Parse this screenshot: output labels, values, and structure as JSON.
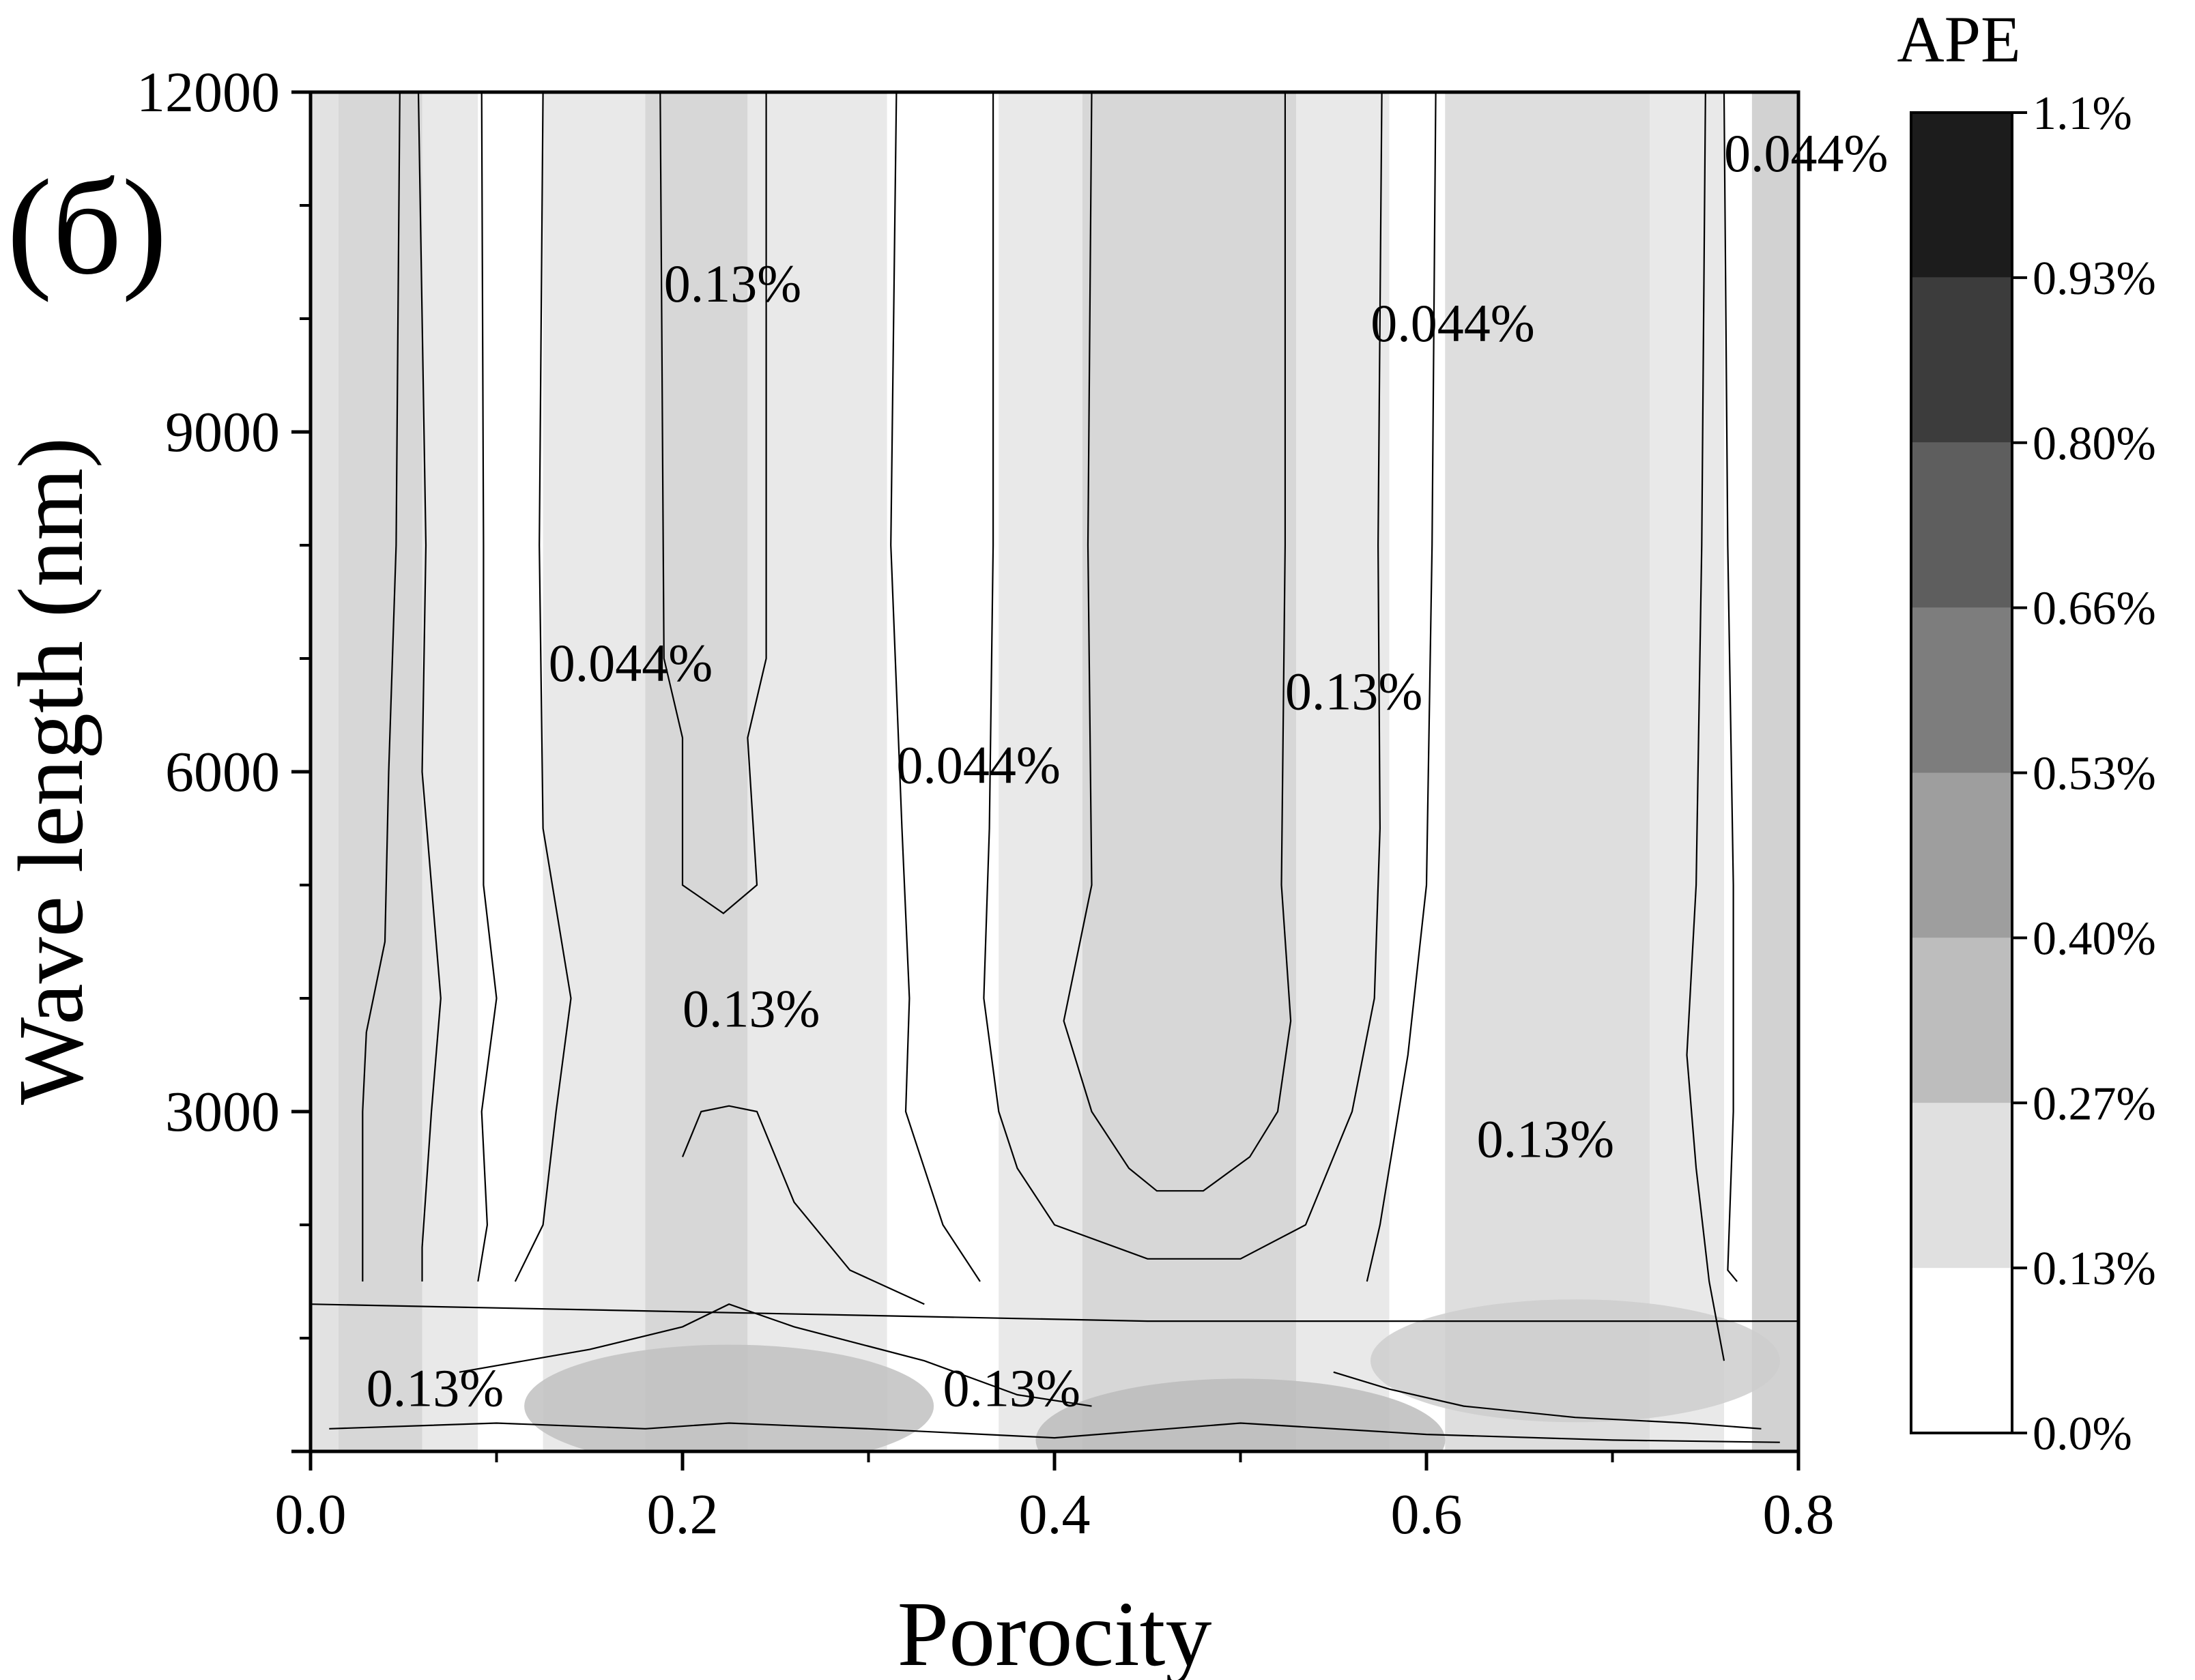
{
  "chart_data": {
    "type": "heatmap",
    "panel_label": "(б)",
    "xlabel": "Porocity",
    "ylabel": "Wave length (nm)",
    "xlim": [
      0.0,
      0.8
    ],
    "ylim": [
      0,
      12000
    ],
    "xticks": [
      "0.0",
      "0.2",
      "0.4",
      "0.6",
      "0.8"
    ],
    "yticks": [
      "3000",
      "6000",
      "9000",
      "12000"
    ],
    "colorbar": {
      "title": "APE",
      "levels": [
        0.0,
        0.13,
        0.27,
        0.4,
        0.53,
        0.66,
        0.8,
        0.93,
        1.1
      ],
      "labels": [
        "0.0%",
        "0.13%",
        "0.27%",
        "0.40%",
        "0.53%",
        "0.66%",
        "0.80%",
        "0.93%",
        "1.1%"
      ],
      "colors": [
        "#ffffff",
        "#e0e0e0",
        "#bdbdbd",
        "#9e9e9e",
        "#7d7d7d",
        "#5e5e5e",
        "#3c3c3c",
        "#1c1c1c"
      ]
    },
    "bands": [
      {
        "porosity": [
          0.0,
          0.015
        ],
        "level": 0.13
      },
      {
        "porosity": [
          0.015,
          0.06
        ],
        "level": 0.18
      },
      {
        "porosity": [
          0.06,
          0.09
        ],
        "level": 0.1
      },
      {
        "porosity": [
          0.09,
          0.125
        ],
        "level": 0.0
      },
      {
        "porosity": [
          0.125,
          0.18
        ],
        "level": 0.1
      },
      {
        "porosity": [
          0.18,
          0.235
        ],
        "level": 0.18
      },
      {
        "porosity": [
          0.235,
          0.31
        ],
        "level": 0.1
      },
      {
        "porosity": [
          0.31,
          0.37
        ],
        "level": 0.0
      },
      {
        "porosity": [
          0.37,
          0.415
        ],
        "level": 0.1
      },
      {
        "porosity": [
          0.415,
          0.53
        ],
        "level": 0.18
      },
      {
        "porosity": [
          0.53,
          0.58
        ],
        "level": 0.1
      },
      {
        "porosity": [
          0.58,
          0.61
        ],
        "level": 0.0
      },
      {
        "porosity": [
          0.61,
          0.72
        ],
        "level": 0.15
      },
      {
        "porosity": [
          0.72,
          0.76
        ],
        "level": 0.1
      },
      {
        "porosity": [
          0.76,
          0.775
        ],
        "level": 0.0
      },
      {
        "porosity": [
          0.775,
          0.8
        ],
        "level": 0.2
      }
    ],
    "blobs": [
      {
        "porosity": 0.225,
        "wavelength": 400,
        "level": 0.28
      },
      {
        "porosity": 0.68,
        "wavelength": 800,
        "level": 0.22
      },
      {
        "porosity": 0.5,
        "wavelength": 100,
        "level": 0.3
      }
    ],
    "contours": [
      {
        "level": "0.13%",
        "points": [
          [
            0.048,
            12000
          ],
          [
            0.046,
            8000
          ],
          [
            0.042,
            6000
          ],
          [
            0.04,
            4500
          ],
          [
            0.03,
            3700
          ],
          [
            0.028,
            3000
          ],
          [
            0.028,
            1500
          ]
        ]
      },
      {
        "level": "0.13%",
        "points": [
          [
            0.058,
            12000
          ],
          [
            0.062,
            8000
          ],
          [
            0.06,
            6000
          ],
          [
            0.07,
            4000
          ],
          [
            0.065,
            3000
          ],
          [
            0.06,
            1800
          ],
          [
            0.06,
            1500
          ]
        ]
      },
      {
        "level": "0.044%",
        "points": [
          [
            0.092,
            12000
          ],
          [
            0.093,
            8000
          ],
          [
            0.093,
            5000
          ],
          [
            0.1,
            4000
          ],
          [
            0.092,
            3000
          ],
          [
            0.095,
            2000
          ],
          [
            0.09,
            1500
          ]
        ]
      },
      {
        "level": "0.044%",
        "points": [
          [
            0.125,
            12000
          ],
          [
            0.123,
            8000
          ],
          [
            0.125,
            5500
          ],
          [
            0.14,
            4000
          ],
          [
            0.132,
            3000
          ],
          [
            0.125,
            2000
          ],
          [
            0.11,
            1500
          ]
        ]
      },
      {
        "level": "0.13%",
        "points": [
          [
            0.188,
            12000
          ],
          [
            0.19,
            7000
          ],
          [
            0.2,
            6300
          ],
          [
            0.2,
            5000
          ],
          [
            0.222,
            4750
          ],
          [
            0.24,
            5000
          ],
          [
            0.235,
            6300
          ],
          [
            0.245,
            7000
          ],
          [
            0.245,
            12000
          ]
        ]
      },
      {
        "level": "0.044%",
        "points": [
          [
            0.315,
            12000
          ],
          [
            0.312,
            8000
          ],
          [
            0.318,
            5500
          ],
          [
            0.322,
            4000
          ],
          [
            0.32,
            3000
          ],
          [
            0.34,
            2000
          ],
          [
            0.36,
            1500
          ]
        ]
      },
      {
        "level": "0.13%",
        "points": [
          [
            0.42,
            12000
          ],
          [
            0.418,
            8000
          ],
          [
            0.42,
            5000
          ],
          [
            0.405,
            3800
          ],
          [
            0.42,
            3000
          ],
          [
            0.44,
            2500
          ],
          [
            0.455,
            2300
          ],
          [
            0.48,
            2300
          ],
          [
            0.505,
            2600
          ],
          [
            0.52,
            3000
          ],
          [
            0.527,
            3800
          ],
          [
            0.522,
            5000
          ],
          [
            0.524,
            8000
          ],
          [
            0.524,
            12000
          ]
        ]
      },
      {
        "level": "0.044%",
        "points": [
          [
            0.576,
            12000
          ],
          [
            0.574,
            8000
          ],
          [
            0.575,
            5500
          ],
          [
            0.572,
            4000
          ],
          [
            0.56,
            3000
          ],
          [
            0.535,
            2000
          ],
          [
            0.5,
            1700
          ],
          [
            0.45,
            1700
          ],
          [
            0.4,
            2000
          ],
          [
            0.38,
            2500
          ],
          [
            0.37,
            3000
          ],
          [
            0.362,
            4000
          ],
          [
            0.365,
            5500
          ],
          [
            0.367,
            8000
          ],
          [
            0.367,
            12000
          ]
        ]
      },
      {
        "level": "0.044%",
        "points": [
          [
            0.605,
            12000
          ],
          [
            0.603,
            8000
          ],
          [
            0.6,
            5000
          ],
          [
            0.59,
            3500
          ],
          [
            0.58,
            2500
          ],
          [
            0.575,
            2000
          ],
          [
            0.568,
            1500
          ]
        ]
      },
      {
        "level": "0.13%",
        "points": [
          [
            0.75,
            12000
          ],
          [
            0.748,
            8000
          ],
          [
            0.745,
            5000
          ],
          [
            0.74,
            3500
          ],
          [
            0.745,
            2500
          ],
          [
            0.752,
            1500
          ],
          [
            0.76,
            800
          ]
        ]
      },
      {
        "level": "0.044%",
        "points": [
          [
            0.76,
            12000
          ],
          [
            0.762,
            8000
          ],
          [
            0.765,
            5000
          ],
          [
            0.765,
            3000
          ],
          [
            0.762,
            1600
          ],
          [
            0.767,
            1500
          ]
        ]
      },
      {
        "level": "0.13%",
        "points": [
          [
            0.0,
            1300
          ],
          [
            0.45,
            1150
          ],
          [
            0.8,
            1150
          ]
        ]
      },
      {
        "level": "0.13%",
        "points": [
          [
            0.01,
            200
          ],
          [
            0.1,
            250
          ],
          [
            0.18,
            200
          ],
          [
            0.225,
            250
          ],
          [
            0.3,
            200
          ],
          [
            0.4,
            120
          ],
          [
            0.5,
            250
          ],
          [
            0.6,
            150
          ],
          [
            0.7,
            100
          ],
          [
            0.79,
            80
          ]
        ]
      },
      {
        "level": "0.13%",
        "points": [
          [
            0.08,
            700
          ],
          [
            0.15,
            900
          ],
          [
            0.2,
            1100
          ],
          [
            0.225,
            1300
          ],
          [
            0.26,
            1100
          ],
          [
            0.33,
            800
          ],
          [
            0.38,
            500
          ],
          [
            0.42,
            400
          ]
        ]
      },
      {
        "level": "0.13%",
        "points": [
          [
            0.2,
            2600
          ],
          [
            0.21,
            3000
          ],
          [
            0.225,
            3050
          ],
          [
            0.24,
            3000
          ],
          [
            0.26,
            2200
          ],
          [
            0.29,
            1600
          ],
          [
            0.33,
            1300
          ]
        ]
      },
      {
        "level": "0.13%",
        "points": [
          [
            0.55,
            700
          ],
          [
            0.58,
            550
          ],
          [
            0.62,
            400
          ],
          [
            0.68,
            300
          ],
          [
            0.74,
            250
          ],
          [
            0.78,
            200
          ]
        ]
      }
    ],
    "contour_labels": [
      {
        "text": "0.13%",
        "porosity": 0.19,
        "wavelength": 10150
      },
      {
        "text": "0.044%",
        "porosity": 0.57,
        "wavelength": 9800
      },
      {
        "text": "0.044%",
        "porosity": 0.76,
        "wavelength": 11300
      },
      {
        "text": "0.044%",
        "porosity": 0.128,
        "wavelength": 6800
      },
      {
        "text": "0.13%",
        "porosity": 0.524,
        "wavelength": 6550
      },
      {
        "text": "0.044%",
        "porosity": 0.315,
        "wavelength": 5900
      },
      {
        "text": "0.13%",
        "porosity": 0.2,
        "wavelength": 3750
      },
      {
        "text": "0.13%",
        "porosity": 0.627,
        "wavelength": 2600
      },
      {
        "text": "0.13%",
        "porosity": 0.03,
        "wavelength": 400
      },
      {
        "text": "0.13%",
        "porosity": 0.34,
        "wavelength": 400
      }
    ]
  }
}
